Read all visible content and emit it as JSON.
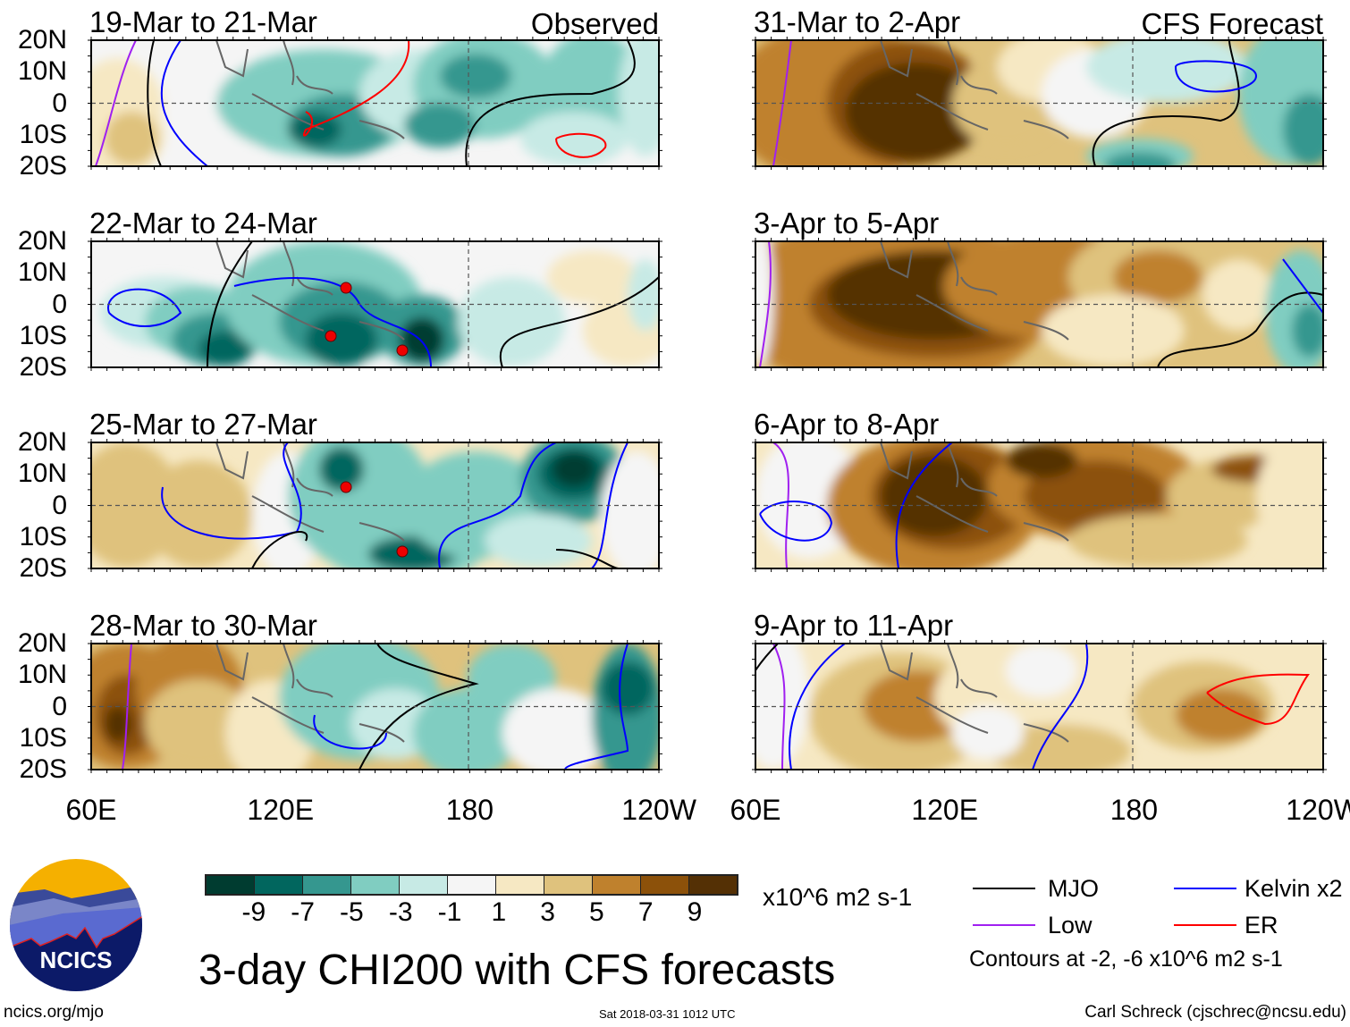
{
  "panels": {
    "observed": [
      {
        "title": "19-Mar to 21-Mar",
        "tag": "Observed"
      },
      {
        "title": "22-Mar to 24-Mar"
      },
      {
        "title": "25-Mar to 27-Mar"
      },
      {
        "title": "28-Mar to 30-Mar"
      }
    ],
    "forecast": [
      {
        "title": "31-Mar to 2-Apr",
        "tag": "CFS Forecast"
      },
      {
        "title": "3-Apr to 5-Apr"
      },
      {
        "title": "6-Apr to 8-Apr"
      },
      {
        "title": "9-Apr to 11-Apr"
      }
    ]
  },
  "axes": {
    "lat_labels": [
      "20N",
      "10N",
      "0",
      "10S",
      "20S"
    ],
    "lon_labels": [
      "60E",
      "120E",
      "180",
      "120W"
    ]
  },
  "colorbar": {
    "colors": [
      "#003c30",
      "#01665e",
      "#35978f",
      "#80cdc1",
      "#c7eae5",
      "#f5f5f5",
      "#f6e8c3",
      "#dfc27d",
      "#bf812d",
      "#8c510a",
      "#543005"
    ],
    "labels": [
      "-9",
      "-7",
      "-5",
      "-3",
      "-1",
      "1",
      "3",
      "5",
      "7",
      "9"
    ],
    "units": "x10^6 m2 s-1"
  },
  "legend": {
    "items": [
      {
        "label": "MJO",
        "color": "#000000"
      },
      {
        "label": "Kelvin x2",
        "color": "#0000ff"
      },
      {
        "label": "Low",
        "color": "#a020f0"
      },
      {
        "label": "ER",
        "color": "#ff0000"
      }
    ],
    "note": "Contours at -2, -6 x10^6 m2 s-1"
  },
  "title": "3-day CHI200 with CFS forecasts",
  "logo": {
    "text": "NCICS"
  },
  "footer": {
    "url": "ncics.org/mjo",
    "timestamp": "Sat 2018-03-31 1012 UTC",
    "credit": "Carl Schreck (cjschrec@ncsu.edu)"
  }
}
